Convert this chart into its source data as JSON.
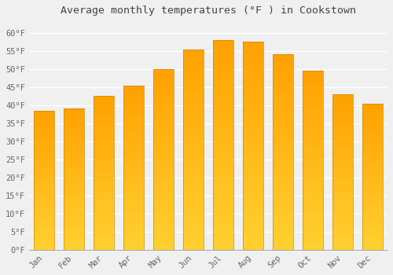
{
  "title": "Average monthly temperatures (°F ) in Cookstown",
  "months": [
    "Jan",
    "Feb",
    "Mar",
    "Apr",
    "May",
    "Jun",
    "Jul",
    "Aug",
    "Sep",
    "Oct",
    "Nov",
    "Dec"
  ],
  "values": [
    38.5,
    39,
    42.5,
    45.5,
    50,
    55.5,
    58,
    57.5,
    54,
    49.5,
    43,
    40.5
  ],
  "bar_color": "#FFA500",
  "bar_color_light": "#FFD050",
  "background_color": "#f0f0f0",
  "grid_color": "#ffffff",
  "title_fontsize": 9.5,
  "tick_fontsize": 7.5,
  "tick_color": "#666666",
  "title_color": "#444444",
  "ylim": [
    0,
    63
  ],
  "yticks": [
    0,
    5,
    10,
    15,
    20,
    25,
    30,
    35,
    40,
    45,
    50,
    55,
    60
  ],
  "ytick_labels": [
    "0°F",
    "5°F",
    "10°F",
    "15°F",
    "20°F",
    "25°F",
    "30°F",
    "35°F",
    "40°F",
    "45°F",
    "50°F",
    "55°F",
    "60°F"
  ]
}
